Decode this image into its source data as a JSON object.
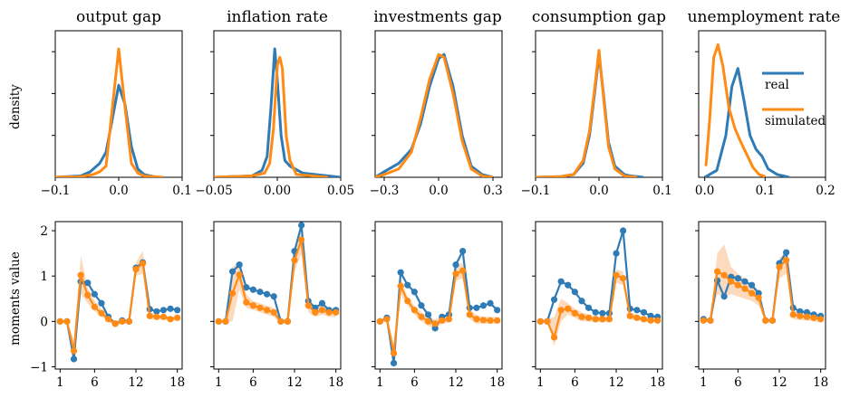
{
  "colors": {
    "real": "#2f7bb6",
    "simulated": "#ff8a14",
    "band": "#fbd3b2"
  },
  "legend": {
    "placement": "upper right of last density panel",
    "entries": [
      "real",
      "simulated"
    ]
  },
  "ylabels": {
    "density": "density",
    "moments": "moments value"
  },
  "panels": [
    {
      "title": "output gap"
    },
    {
      "title": "inflation rate"
    },
    {
      "title": "investments gap"
    },
    {
      "title": "consumption gap"
    },
    {
      "title": "unemployment rate"
    }
  ],
  "chart_data": [
    {
      "type": "line",
      "title": "output gap",
      "ylabel": "density",
      "xlim": [
        -0.1,
        0.1
      ],
      "ylim": [
        0,
        1.05
      ],
      "xticks": [
        -0.1,
        0.0,
        0.1
      ],
      "xtick_labels": [
        "−0.1",
        "0.0",
        "0.1"
      ],
      "series": [
        {
          "name": "real",
          "x": [
            -0.1,
            -0.06,
            -0.045,
            -0.03,
            -0.02,
            -0.01,
            0.0,
            0.01,
            0.02,
            0.03,
            0.04,
            0.06
          ],
          "values": [
            0,
            0.01,
            0.04,
            0.1,
            0.18,
            0.42,
            0.66,
            0.52,
            0.22,
            0.06,
            0.02,
            0
          ]
        },
        {
          "name": "simulated",
          "x": [
            -0.1,
            -0.06,
            -0.04,
            -0.03,
            -0.02,
            -0.01,
            0.0,
            0.01,
            0.02,
            0.03,
            0.04,
            0.07
          ],
          "values": [
            0,
            0.005,
            0.02,
            0.04,
            0.08,
            0.5,
            0.92,
            0.5,
            0.1,
            0.03,
            0.01,
            0
          ]
        }
      ]
    },
    {
      "type": "line",
      "title": "inflation rate",
      "xlim": [
        -0.05,
        0.05
      ],
      "ylim": [
        0,
        1.05
      ],
      "xticks": [
        -0.05,
        0.0,
        0.05
      ],
      "xtick_labels": [
        "−0.05",
        "0.00",
        "0.05"
      ],
      "series": [
        {
          "name": "real",
          "x": [
            -0.05,
            -0.02,
            -0.012,
            -0.008,
            -0.005,
            -0.002,
            0.0,
            0.003,
            0.006,
            0.01,
            0.02,
            0.05
          ],
          "values": [
            0,
            0.01,
            0.05,
            0.15,
            0.5,
            0.92,
            0.7,
            0.3,
            0.12,
            0.08,
            0.03,
            0
          ]
        },
        {
          "name": "simulated",
          "x": [
            -0.05,
            -0.02,
            -0.01,
            -0.006,
            -0.003,
            0.0,
            0.002,
            0.004,
            0.007,
            0.01,
            0.015,
            0.04
          ],
          "values": [
            0,
            0.01,
            0.03,
            0.1,
            0.35,
            0.8,
            0.86,
            0.78,
            0.3,
            0.12,
            0.02,
            0
          ]
        }
      ]
    },
    {
      "type": "line",
      "title": "investments gap",
      "xlim": [
        -0.35,
        0.35
      ],
      "ylim": [
        0,
        1.05
      ],
      "xticks": [
        -0.3,
        0.0,
        0.3
      ],
      "xtick_labels": [
        "−0.3",
        "0.0",
        "0.3"
      ],
      "series": [
        {
          "name": "real",
          "x": [
            -0.35,
            -0.3,
            -0.22,
            -0.15,
            -0.1,
            -0.05,
            0.0,
            0.03,
            0.08,
            0.13,
            0.18,
            0.24,
            0.3
          ],
          "values": [
            0,
            0.04,
            0.1,
            0.2,
            0.38,
            0.65,
            0.85,
            0.88,
            0.65,
            0.3,
            0.08,
            0.02,
            0
          ]
        },
        {
          "name": "simulated",
          "x": [
            -0.35,
            -0.3,
            -0.22,
            -0.15,
            -0.1,
            -0.05,
            0.0,
            0.03,
            0.08,
            0.13,
            0.18,
            0.24,
            0.3
          ],
          "values": [
            0,
            0.02,
            0.06,
            0.18,
            0.42,
            0.7,
            0.88,
            0.86,
            0.6,
            0.26,
            0.06,
            0.01,
            0
          ]
        }
      ]
    },
    {
      "type": "line",
      "title": "consumption gap",
      "xlim": [
        -0.1,
        0.1
      ],
      "ylim": [
        0,
        1.05
      ],
      "xticks": [
        -0.1,
        0.0,
        0.1
      ],
      "xtick_labels": [
        "−0.1",
        "0.0",
        "0.1"
      ],
      "series": [
        {
          "name": "real",
          "x": [
            -0.1,
            -0.06,
            -0.04,
            -0.025,
            -0.015,
            -0.007,
            0.0,
            0.007,
            0.015,
            0.025,
            0.04,
            0.05,
            0.07
          ],
          "values": [
            0,
            0.005,
            0.02,
            0.1,
            0.3,
            0.6,
            0.88,
            0.6,
            0.25,
            0.08,
            0.02,
            0.01,
            0
          ]
        },
        {
          "name": "simulated",
          "x": [
            -0.1,
            -0.06,
            -0.04,
            -0.025,
            -0.015,
            -0.007,
            0.0,
            0.007,
            0.015,
            0.025,
            0.04,
            0.06
          ],
          "values": [
            0,
            0.005,
            0.02,
            0.12,
            0.33,
            0.63,
            0.91,
            0.58,
            0.22,
            0.06,
            0.01,
            0
          ]
        }
      ]
    },
    {
      "type": "line",
      "title": "unemployment rate",
      "xlim": [
        -0.01,
        0.2
      ],
      "ylim": [
        0,
        1.05
      ],
      "xticks": [
        0.0,
        0.1,
        0.2
      ],
      "xtick_labels": [
        "0.0",
        "0.1",
        "0.2"
      ],
      "series": [
        {
          "name": "real",
          "x": [
            0.0,
            0.02,
            0.035,
            0.045,
            0.055,
            0.065,
            0.075,
            0.085,
            0.095,
            0.105,
            0.12,
            0.14
          ],
          "values": [
            0,
            0.05,
            0.3,
            0.65,
            0.78,
            0.55,
            0.3,
            0.2,
            0.15,
            0.06,
            0.02,
            0
          ]
        },
        {
          "name": "simulated",
          "x": [
            0.002,
            0.008,
            0.015,
            0.022,
            0.03,
            0.04,
            0.05,
            0.06,
            0.07,
            0.08,
            0.09,
            0.1
          ],
          "values": [
            0.08,
            0.4,
            0.86,
            0.95,
            0.8,
            0.5,
            0.35,
            0.25,
            0.16,
            0.07,
            0.02,
            0.005
          ]
        }
      ]
    },
    {
      "type": "line",
      "title": "output gap",
      "ylabel": "moments value",
      "x": [
        1,
        2,
        3,
        4,
        5,
        6,
        7,
        8,
        9,
        10,
        11,
        12,
        13,
        14,
        15,
        16,
        17,
        18
      ],
      "xlim": [
        0.3,
        18.7
      ],
      "ylim": [
        -1.05,
        2.2
      ],
      "xticks": [
        1,
        6,
        12,
        18
      ],
      "yticks": [
        -1,
        0,
        1,
        2
      ],
      "series": [
        {
          "name": "real",
          "values": [
            0.0,
            0.0,
            -0.83,
            0.88,
            0.85,
            0.6,
            0.4,
            0.1,
            -0.05,
            0.02,
            0.0,
            1.18,
            1.3,
            0.27,
            0.22,
            0.25,
            0.28,
            0.25
          ]
        },
        {
          "name": "simulated",
          "values": [
            0.0,
            0.0,
            -0.65,
            1.02,
            0.58,
            0.32,
            0.18,
            0.05,
            -0.05,
            0.0,
            0.0,
            1.15,
            1.28,
            0.12,
            0.1,
            0.1,
            0.05,
            0.08
          ]
        }
      ],
      "band": {
        "lower": [
          0,
          0,
          -0.9,
          0.6,
          0.4,
          0.22,
          0.1,
          0.0,
          -0.1,
          -0.05,
          -0.05,
          1.0,
          1.05,
          0.05,
          0.05,
          0.05,
          0.0,
          0.03
        ],
        "upper": [
          0,
          0,
          -0.4,
          1.45,
          0.75,
          0.45,
          0.28,
          0.12,
          0.0,
          0.05,
          0.05,
          1.3,
          1.55,
          0.2,
          0.15,
          0.15,
          0.1,
          0.13
        ]
      }
    },
    {
      "type": "line",
      "title": "inflation rate",
      "x": [
        1,
        2,
        3,
        4,
        5,
        6,
        7,
        8,
        9,
        10,
        11,
        12,
        13,
        14,
        15,
        16,
        17,
        18
      ],
      "xlim": [
        0.3,
        18.7
      ],
      "ylim": [
        -1.05,
        2.2
      ],
      "xticks": [
        1,
        6,
        12,
        18
      ],
      "yticks": [
        -1,
        0,
        1,
        2
      ],
      "series": [
        {
          "name": "real",
          "values": [
            0.0,
            0.0,
            1.1,
            1.25,
            0.75,
            0.7,
            0.65,
            0.6,
            0.55,
            0.0,
            0.0,
            1.55,
            2.12,
            0.45,
            0.3,
            0.4,
            0.25,
            0.25
          ]
        },
        {
          "name": "simulated",
          "values": [
            0.0,
            0.0,
            0.62,
            1.03,
            0.42,
            0.35,
            0.3,
            0.25,
            0.2,
            0.0,
            0.0,
            1.35,
            1.8,
            0.35,
            0.2,
            0.25,
            0.2,
            0.2
          ]
        }
      ],
      "band": {
        "lower": [
          0,
          0,
          0.0,
          0.7,
          0.3,
          0.25,
          0.2,
          0.15,
          0.1,
          -0.05,
          -0.05,
          1.1,
          1.5,
          0.2,
          0.1,
          0.15,
          0.1,
          0.1
        ],
        "upper": [
          0,
          0,
          1.2,
          1.3,
          0.6,
          0.45,
          0.4,
          0.35,
          0.3,
          0.05,
          0.05,
          1.6,
          2.0,
          0.5,
          0.3,
          0.35,
          0.3,
          0.3
        ]
      }
    },
    {
      "type": "line",
      "title": "investments gap",
      "x": [
        1,
        2,
        3,
        4,
        5,
        6,
        7,
        8,
        9,
        10,
        11,
        12,
        13,
        14,
        15,
        16,
        17,
        18
      ],
      "xlim": [
        0.3,
        18.7
      ],
      "ylim": [
        -1.05,
        2.2
      ],
      "xticks": [
        1,
        6,
        12,
        18
      ],
      "yticks": [
        -1,
        0,
        1,
        2
      ],
      "series": [
        {
          "name": "real",
          "values": [
            0.0,
            0.08,
            -0.92,
            1.08,
            0.8,
            0.65,
            0.35,
            0.15,
            -0.15,
            0.1,
            0.15,
            1.25,
            1.55,
            0.3,
            0.3,
            0.35,
            0.4,
            0.25
          ]
        },
        {
          "name": "simulated",
          "values": [
            0.0,
            0.05,
            -0.7,
            0.78,
            0.45,
            0.25,
            0.1,
            0.0,
            -0.05,
            0.02,
            0.05,
            1.05,
            1.12,
            0.15,
            0.05,
            0.03,
            0.02,
            0.02
          ]
        }
      ],
      "band": {
        "lower": [
          0,
          0,
          -0.85,
          0.6,
          0.35,
          0.15,
          0.0,
          -0.1,
          -0.15,
          -0.05,
          -0.02,
          0.9,
          0.95,
          0.05,
          -0.05,
          -0.05,
          -0.05,
          -0.05
        ],
        "upper": [
          0,
          0.1,
          -0.5,
          0.95,
          0.55,
          0.35,
          0.2,
          0.1,
          0.05,
          0.1,
          0.12,
          1.2,
          1.3,
          0.25,
          0.15,
          0.1,
          0.1,
          0.1
        ]
      }
    },
    {
      "type": "line",
      "title": "consumption gap",
      "x": [
        1,
        2,
        3,
        4,
        5,
        6,
        7,
        8,
        9,
        10,
        11,
        12,
        13,
        14,
        15,
        16,
        17,
        18
      ],
      "xlim": [
        0.3,
        18.7
      ],
      "ylim": [
        -1.05,
        2.2
      ],
      "xticks": [
        1,
        6,
        12,
        18
      ],
      "yticks": [
        -1,
        0,
        1,
        2
      ],
      "series": [
        {
          "name": "real",
          "values": [
            0.0,
            0.0,
            0.48,
            0.88,
            0.8,
            0.65,
            0.45,
            0.3,
            0.2,
            0.18,
            0.18,
            1.5,
            2.0,
            0.28,
            0.25,
            0.2,
            0.12,
            0.1
          ]
        },
        {
          "name": "simulated",
          "values": [
            0.0,
            0.0,
            -0.35,
            0.25,
            0.28,
            0.18,
            0.1,
            0.08,
            0.05,
            0.05,
            0.05,
            1.02,
            0.95,
            0.12,
            0.08,
            0.05,
            0.02,
            0.02
          ]
        }
      ],
      "band": {
        "lower": [
          0,
          0,
          -0.55,
          0.0,
          0.15,
          0.08,
          0.0,
          0.0,
          -0.02,
          -0.02,
          -0.02,
          0.85,
          0.8,
          0.05,
          0.02,
          0.0,
          -0.02,
          -0.02
        ],
        "upper": [
          0,
          0.05,
          0.1,
          0.5,
          0.4,
          0.28,
          0.2,
          0.15,
          0.12,
          0.12,
          0.12,
          1.15,
          1.1,
          0.2,
          0.15,
          0.1,
          0.08,
          0.08
        ]
      }
    },
    {
      "type": "line",
      "title": "unemployment rate",
      "x": [
        1,
        2,
        3,
        4,
        5,
        6,
        7,
        8,
        9,
        10,
        11,
        12,
        13,
        14,
        15,
        16,
        17,
        18
      ],
      "xlim": [
        0.3,
        18.7
      ],
      "ylim": [
        -1.05,
        2.2
      ],
      "xticks": [
        1,
        6,
        12,
        18
      ],
      "yticks": [
        -1,
        0,
        1,
        2
      ],
      "series": [
        {
          "name": "real",
          "values": [
            0.05,
            0.02,
            0.9,
            0.55,
            0.98,
            0.95,
            0.88,
            0.8,
            0.62,
            0.02,
            0.02,
            1.28,
            1.52,
            0.3,
            0.22,
            0.2,
            0.15,
            0.12
          ]
        },
        {
          "name": "simulated",
          "values": [
            0.02,
            0.02,
            1.1,
            1.02,
            0.88,
            0.8,
            0.72,
            0.62,
            0.52,
            0.02,
            0.02,
            1.2,
            1.35,
            0.15,
            0.12,
            0.1,
            0.08,
            0.05
          ]
        }
      ],
      "band": {
        "lower": [
          0,
          0,
          0.6,
          0.55,
          0.6,
          0.55,
          0.5,
          0.45,
          0.35,
          -0.02,
          -0.02,
          0.95,
          1.05,
          0.05,
          0.03,
          0.02,
          0.0,
          -0.02
        ],
        "upper": [
          0.05,
          0.05,
          1.5,
          1.7,
          1.2,
          1.05,
          0.95,
          0.8,
          0.7,
          0.05,
          0.05,
          1.4,
          1.55,
          0.25,
          0.2,
          0.18,
          0.15,
          0.12
        ]
      }
    }
  ]
}
